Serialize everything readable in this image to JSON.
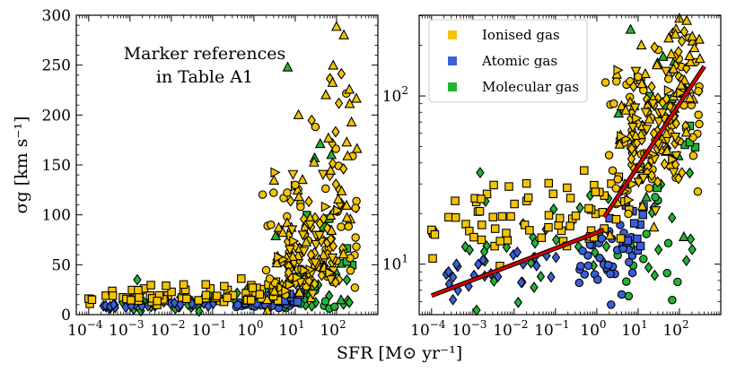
{
  "chart_data": {
    "type": "scatter",
    "xlabel": "SFR [M⊙ yr⁻¹]",
    "ylabel": "σg [km s⁻¹]",
    "colors": {
      "ionised": "#f5c400",
      "atomic": "#3b5fd9",
      "molecular": "#22b533",
      "fit": "#d40000"
    },
    "legend": [
      {
        "label": "Ionised gas",
        "key": "ionised"
      },
      {
        "label": "Atomic gas",
        "key": "atomic"
      },
      {
        "label": "Molecular gas",
        "key": "molecular"
      }
    ],
    "panels": [
      {
        "id": "left",
        "yscale": "linear",
        "xlim_log10": [
          -4.3,
          3.0
        ],
        "ylim": [
          0,
          300
        ],
        "annotation": [
          "Marker references",
          "in Table A1"
        ]
      },
      {
        "id": "right",
        "yscale": "log",
        "xlim_log10": [
          -4.3,
          3.0
        ],
        "ylim_log10": [
          0.7,
          2.48
        ],
        "fit_lines": [
          {
            "x": [
              0.0001,
              1.5
            ],
            "y": [
              6.5,
              16
            ]
          },
          {
            "x": [
              1.5,
              400
            ],
            "y": [
              19,
              150
            ]
          }
        ]
      }
    ],
    "x_ticks": [
      {
        "label": "10",
        "exp": "−4",
        "log": -4
      },
      {
        "label": "10",
        "exp": "−3",
        "log": -3
      },
      {
        "label": "10",
        "exp": "−2",
        "log": -2
      },
      {
        "label": "10",
        "exp": "−1",
        "log": -1
      },
      {
        "label": "10",
        "exp": "0",
        "log": 0
      },
      {
        "label": "10",
        "exp": "1",
        "log": 1
      },
      {
        "label": "10",
        "exp": "2",
        "log": 2
      }
    ],
    "left_y_ticks": [
      {
        "label": "0",
        "value": 0
      },
      {
        "label": "50",
        "value": 50
      },
      {
        "label": "100",
        "value": 100
      },
      {
        "label": "150",
        "value": 150
      },
      {
        "label": "200",
        "value": 200
      },
      {
        "label": "250",
        "value": 250
      },
      {
        "label": "300",
        "value": 300
      }
    ],
    "right_y_ticks": [
      {
        "label": "10",
        "exp": "1",
        "value": 10
      },
      {
        "label": "10",
        "exp": "2",
        "value": 100
      }
    ],
    "groups": [
      {
        "gas": "ionised",
        "shape": "square",
        "n": 70,
        "logsfr": [
          -4.0,
          0.8
        ],
        "sigma_mean": 20,
        "spread": 0.12,
        "trend": 0.03
      },
      {
        "gas": "ionised",
        "shape": "circle",
        "n": 55,
        "logsfr": [
          0.2,
          2.5
        ],
        "sigma_mean": 60,
        "spread": 0.25,
        "trend": 0.2
      },
      {
        "gas": "ionised",
        "shape": "diamond",
        "n": 60,
        "logsfr": [
          0.8,
          2.2
        ],
        "sigma_mean": 75,
        "spread": 0.2,
        "trend": 0.2
      },
      {
        "gas": "ionised",
        "shape": "triangle",
        "n": 55,
        "logsfr": [
          0.3,
          2.5
        ],
        "sigma_mean": 90,
        "spread": 0.3,
        "trend": 0.3
      },
      {
        "gas": "ionised",
        "shape": "triangle-down",
        "n": 20,
        "logsfr": [
          0.8,
          2.0
        ],
        "sigma_mean": 60,
        "spread": 0.18,
        "trend": 0.1
      },
      {
        "gas": "ionised",
        "shape": "triangle-right",
        "n": 15,
        "logsfr": [
          0.5,
          2.3
        ],
        "sigma_mean": 50,
        "spread": 0.2,
        "trend": 0.1
      },
      {
        "gas": "atomic",
        "shape": "diamond",
        "n": 25,
        "logsfr": [
          -3.7,
          -0.8
        ],
        "sigma_mean": 9,
        "spread": 0.08,
        "trend": 0.03
      },
      {
        "gas": "atomic",
        "shape": "circle",
        "n": 35,
        "logsfr": [
          -0.5,
          0.9
        ],
        "sigma_mean": 11,
        "spread": 0.1,
        "trend": 0.05
      },
      {
        "gas": "atomic",
        "shape": "square",
        "n": 12,
        "logsfr": [
          0.2,
          1.2
        ],
        "sigma_mean": 15,
        "spread": 0.1,
        "trend": 0.05
      },
      {
        "gas": "molecular",
        "shape": "diamond",
        "n": 45,
        "logsfr": [
          -3.2,
          2.6
        ],
        "sigma_mean": 12,
        "spread": 0.2,
        "trend": 0.06
      },
      {
        "gas": "molecular",
        "shape": "circle",
        "n": 12,
        "logsfr": [
          0.5,
          2.0
        ],
        "sigma_mean": 12,
        "spread": 0.15,
        "trend": 0.05
      },
      {
        "gas": "molecular",
        "shape": "square",
        "n": 10,
        "logsfr": [
          1.0,
          2.5
        ],
        "sigma_mean": 40,
        "spread": 0.2,
        "trend": 0.15
      },
      {
        "gas": "molecular",
        "shape": "triangle",
        "n": 10,
        "logsfr": [
          0.5,
          2.2
        ],
        "sigma_mean": 60,
        "spread": 0.3,
        "trend": 0.2
      }
    ],
    "notable_points": [
      {
        "gas": "ionised",
        "shape": "triangle",
        "sfr": 150,
        "sigma": 280
      },
      {
        "gas": "ionised",
        "shape": "triangle",
        "sfr": 55,
        "sigma": 220
      },
      {
        "gas": "ionised",
        "shape": "triangle",
        "sfr": 12,
        "sigma": 200
      },
      {
        "gas": "ionised",
        "shape": "circle",
        "sfr": 10,
        "sigma": 130
      },
      {
        "gas": "ionised",
        "shape": "triangle",
        "sfr": 5,
        "sigma": 82
      },
      {
        "gas": "ionised",
        "shape": "square",
        "sfr": 0.0001,
        "sigma": 16
      },
      {
        "gas": "ionised",
        "shape": "square",
        "sfr": 0.00012,
        "sigma": 15
      },
      {
        "gas": "molecular",
        "shape": "diamond",
        "sfr": 0.0015,
        "sigma": 35
      },
      {
        "gas": "molecular",
        "shape": "triangle",
        "sfr": 75,
        "sigma": 160
      },
      {
        "gas": "molecular",
        "shape": "diamond",
        "sfr": 300,
        "sigma": 107
      },
      {
        "gas": "atomic",
        "shape": "diamond",
        "sfr": 0.0004,
        "sigma": 10
      }
    ]
  }
}
